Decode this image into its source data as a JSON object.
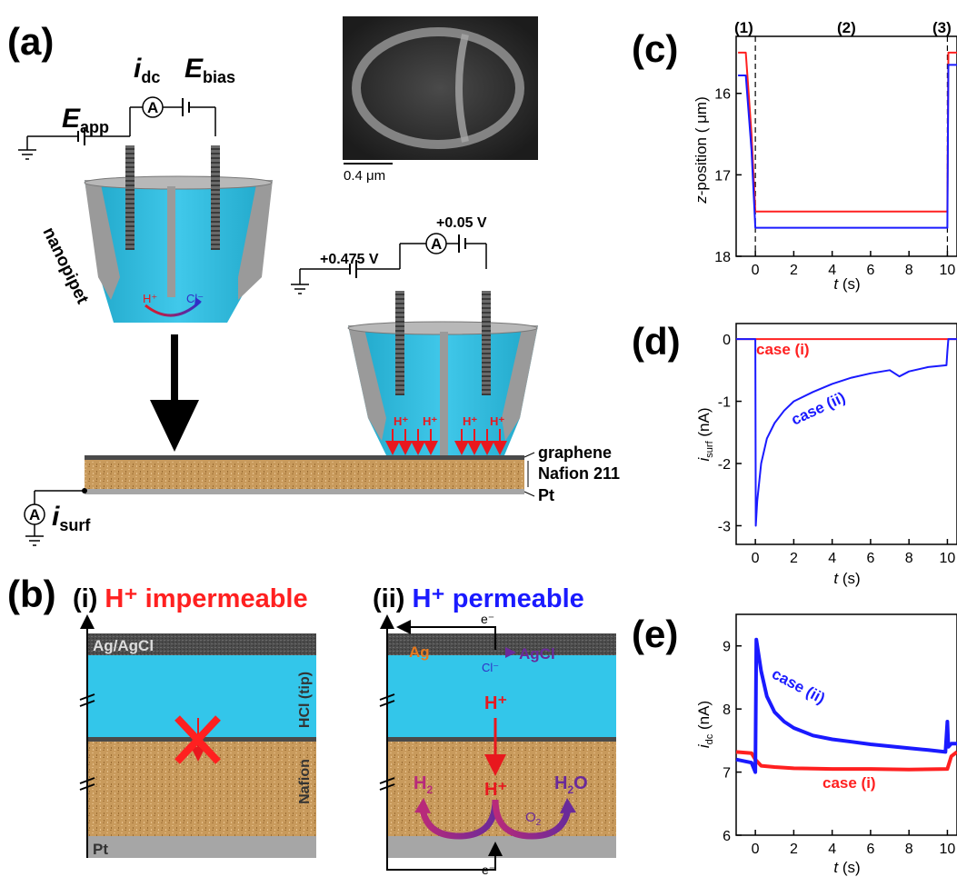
{
  "panel_a": {
    "label": "(a)",
    "e_app_sym": "E",
    "e_app_sub": "app",
    "i_dc_sym": "i",
    "i_dc_sub": "dc",
    "e_bias_sym": "E",
    "e_bias_sub": "bias",
    "ammeter": "A",
    "nanopipet": "nanopipet",
    "h_plus": "H⁺",
    "cl_minus": "Cl⁻",
    "scale_bar": "0.4 μm",
    "v_app": "+0.475 V",
    "v_bias": "+0.05 V",
    "graphene": "graphene",
    "nafion": "Nafion 211",
    "pt": "Pt",
    "i_surf_sym": "i",
    "i_surf_sub": "surf"
  },
  "panel_b": {
    "label": "(b)",
    "i_title_roman": "(i)",
    "i_title": "H⁺ impermeable",
    "ii_title_roman": "(ii)",
    "ii_title": "H⁺ permeable",
    "ag_agcl": "Ag/AgCl",
    "hcl": "HCl (tip)",
    "nafion": "Nafion",
    "pt": "Pt",
    "electron": "e⁻",
    "ag": "Ag",
    "agcl": "AgCl",
    "cl": "Cl⁻",
    "h_plus": "H⁺",
    "h2_main": "H",
    "h2_sub": "2",
    "h2o_main": "H",
    "h2o_sub": "2",
    "h2o_tail": "O",
    "o2_main": "O",
    "o2_sub": "2"
  },
  "panel_c": {
    "label": "(c)",
    "stage_labels": [
      "(1)",
      "(2)",
      "(3)"
    ],
    "ylabel_italic": "z",
    "ylabel_rest": "-position ( μm)",
    "xlabel_italic": "t",
    "xlabel_rest": " (s)"
  },
  "panel_d": {
    "label": "(d)",
    "ylabel_italic": "i",
    "ylabel_sub": "surf",
    "ylabel_rest": " (nA)",
    "xlabel_italic": "t",
    "xlabel_rest": " (s)",
    "case_i": "case (i)",
    "case_ii": "case (ii)"
  },
  "panel_e": {
    "label": "(e)",
    "ylabel_italic": "i",
    "ylabel_sub": "dc",
    "ylabel_rest": " (nA)",
    "xlabel_italic": "t",
    "xlabel_rest": " (s)",
    "case_i": "case (i)",
    "case_ii": "case (ii)"
  },
  "colors": {
    "case_i": "#ff2020",
    "case_ii": "#1a1aff",
    "electrolyte": "#33c6ea",
    "nafion": "#c89a5c",
    "pt": "#a6a6a6",
    "ag_agcl": "#4a4a4a",
    "purple": "#6a2a9a"
  },
  "chart_data": [
    {
      "panel": "c",
      "type": "line",
      "xlim": [
        -1,
        10.5
      ],
      "ylim": [
        18,
        15.3
      ],
      "y_inverted": true,
      "xticks": [
        0,
        2,
        4,
        6,
        8,
        10
      ],
      "yticks": [
        16,
        17,
        18
      ],
      "series": [
        {
          "color": "#ff2020",
          "x": [
            -0.9,
            -0.5,
            -0.2,
            0,
            10,
            10.05,
            10.5
          ],
          "y": [
            15.5,
            15.5,
            16.5,
            17.45,
            17.45,
            15.5,
            15.5
          ]
        },
        {
          "color": "#1a1aff",
          "x": [
            -0.9,
            -0.5,
            -0.2,
            0,
            10,
            10.05,
            10.5
          ],
          "y": [
            15.78,
            15.78,
            16.7,
            17.65,
            17.65,
            15.65,
            15.65
          ]
        }
      ]
    },
    {
      "panel": "d",
      "type": "line",
      "xlim": [
        -1,
        10.5
      ],
      "ylim": [
        -3.3,
        0.25
      ],
      "xticks": [
        0,
        2,
        4,
        6,
        8,
        10
      ],
      "yticks": [
        -3,
        -2,
        -1,
        0
      ],
      "series": [
        {
          "name": "case (i)",
          "color": "#ff2020",
          "x": [
            -1,
            10.5
          ],
          "y": [
            0,
            0
          ]
        },
        {
          "name": "case (ii)",
          "color": "#1a1aff",
          "x": [
            -1,
            0,
            0.02,
            0.1,
            0.3,
            0.6,
            1,
            1.5,
            2,
            3,
            4,
            5,
            6,
            7,
            7.5,
            8,
            9,
            9.95,
            10,
            10.05,
            10.5
          ],
          "y": [
            0,
            0,
            -3.0,
            -2.6,
            -2.0,
            -1.6,
            -1.35,
            -1.15,
            -1.0,
            -0.85,
            -0.72,
            -0.62,
            -0.55,
            -0.5,
            -0.6,
            -0.52,
            -0.45,
            -0.42,
            -0.2,
            0,
            0
          ]
        }
      ]
    },
    {
      "panel": "e",
      "type": "line",
      "xlim": [
        -1,
        10.5
      ],
      "ylim": [
        6,
        9.5
      ],
      "xticks": [
        0,
        2,
        4,
        6,
        8,
        10
      ],
      "yticks": [
        6,
        7,
        8,
        9
      ],
      "series": [
        {
          "name": "case (i)",
          "color": "#ff2020",
          "x": [
            -1,
            -0.2,
            0,
            0.3,
            1,
            2,
            4,
            6,
            8,
            10,
            10.2,
            10.5
          ],
          "y": [
            7.32,
            7.3,
            7.2,
            7.1,
            7.08,
            7.06,
            7.05,
            7.05,
            7.04,
            7.05,
            7.25,
            7.32
          ]
        },
        {
          "name": "case (ii)",
          "color": "#1a1aff",
          "x": [
            -1,
            -0.2,
            0,
            0.05,
            0.3,
            0.6,
            1,
            1.5,
            2,
            3,
            4,
            5,
            6,
            7,
            8,
            9,
            9.9,
            10,
            10.05,
            10.2,
            10.5
          ],
          "y": [
            7.2,
            7.15,
            7.0,
            9.1,
            8.6,
            8.2,
            7.95,
            7.8,
            7.7,
            7.58,
            7.52,
            7.48,
            7.44,
            7.41,
            7.38,
            7.35,
            7.32,
            7.8,
            7.4,
            7.45,
            7.45
          ]
        }
      ]
    }
  ]
}
